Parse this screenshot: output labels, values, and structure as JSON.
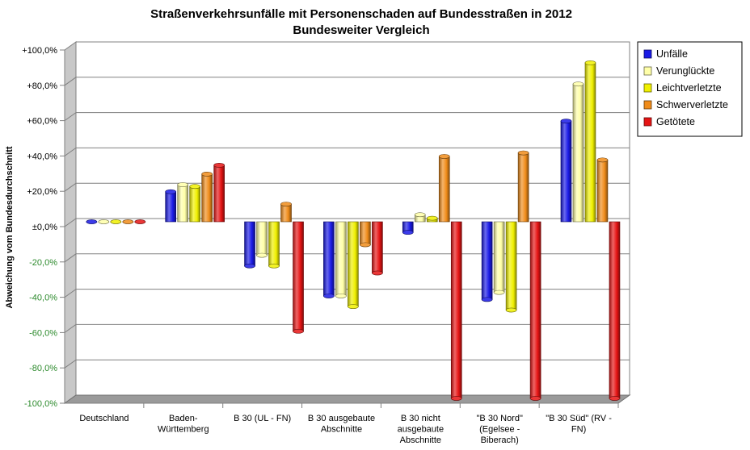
{
  "chart_data": {
    "type": "bar",
    "title": "Straßenverkehrsunfälle mit Personenschaden auf Bundesstraßen in 2012",
    "subtitle": "Bundesweiter Vergleich",
    "ylabel": "Abweichung vom Bundesdurchschnitt",
    "xlabel": "",
    "ylim": [
      -100,
      100
    ],
    "ytick_step": 20,
    "yticks": [
      "+100,0%",
      "+80,0%",
      "+60,0%",
      "+40,0%",
      "+20,0%",
      "±0,0%",
      "-20,0%",
      "-40,0%",
      "-60,0%",
      "-80,0%",
      "-100,0%"
    ],
    "ytick_colors": {
      "positive": "#000000",
      "negative": "#2e8b2e"
    },
    "grid": true,
    "legend_position": "right",
    "categories": [
      [
        "Deutschland"
      ],
      [
        "Baden-",
        "Württemberg"
      ],
      [
        "B 30 (UL - FN)"
      ],
      [
        "B 30 ausgebaute",
        "Abschnitte"
      ],
      [
        "B 30 nicht",
        "ausgebaute",
        "Abschnitte"
      ],
      [
        "\"B 30 Nord\"",
        "(Egelsee -",
        "Biberach)"
      ],
      [
        "\"B 30 Süd\" (RV -",
        "FN)"
      ]
    ],
    "series": [
      {
        "name": "Unfälle",
        "color": "#1a1ae6",
        "values": [
          0,
          17,
          -25,
          -42,
          -6,
          -44,
          57
        ]
      },
      {
        "name": "Verunglückte",
        "color": "#ffffa8",
        "values": [
          0,
          21,
          -19,
          -42,
          4,
          -40,
          78
        ]
      },
      {
        "name": "Leichtverletzte",
        "color": "#f0f000",
        "values": [
          0,
          20,
          -25,
          -48,
          2,
          -50,
          90
        ]
      },
      {
        "name": "Schwerverletzte",
        "color": "#f08c1a",
        "values": [
          0,
          27,
          10,
          -13,
          37,
          39,
          35
        ]
      },
      {
        "name": "Getötete",
        "color": "#e61414",
        "values": [
          0,
          32,
          -62,
          -29,
          -100,
          -100,
          -100
        ]
      }
    ]
  }
}
